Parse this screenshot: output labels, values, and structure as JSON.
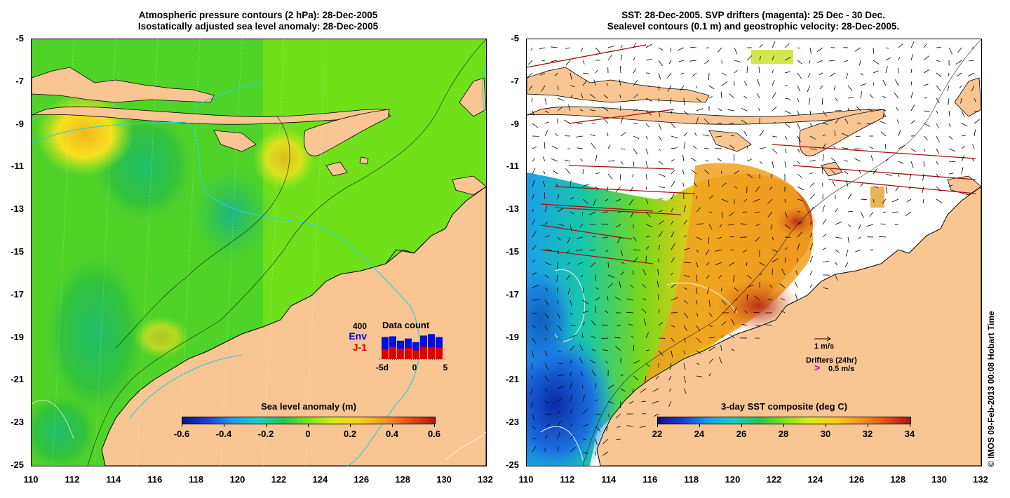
{
  "left_panel": {
    "title_line1": "Atmospheric pressure contours (2 hPa): 28-Dec-2005",
    "title_line2": "Isostatically adjusted sea level anomaly: 28-Dec-2005",
    "colorbar_title": "Sea level anomaly (m)",
    "colorbar_labels": [
      "-0.6",
      "-0.4",
      "-0.2",
      "0",
      "0.2",
      "0.4",
      "0.6"
    ],
    "inset": {
      "count_label": "400",
      "title": "Data count",
      "env_label": "Env",
      "j1_label": "J-1",
      "axis_labels": [
        "-5d",
        "0",
        "5"
      ],
      "env_values": [
        300,
        310,
        250,
        280,
        230,
        320,
        340,
        300
      ],
      "j1_values": [
        130,
        160,
        140,
        150,
        120,
        170,
        160,
        150
      ]
    }
  },
  "right_panel": {
    "title_line1": "SST: 28-Dec-2005. SVP drifters (magenta): 25 Dec - 30 Dec.",
    "title_line2": "Sealevel contours (0.1 m) and geostrophic velocity: 28-Dec-2005.",
    "colorbar_title": "3-day SST composite (deg C)",
    "colorbar_labels": [
      "22",
      "24",
      "26",
      "28",
      "30",
      "32",
      "34"
    ],
    "velocity_scale_label": "1 m/s",
    "drifters_label": "Drifters (24hr)",
    "drifter_speed_label": "0.5 m/s",
    "drifter_marker": ">"
  },
  "axes": {
    "x_ticks": [
      "110",
      "112",
      "114",
      "116",
      "118",
      "120",
      "122",
      "124",
      "126",
      "128",
      "130",
      "132"
    ],
    "y_ticks": [
      "-5",
      "-7",
      "-9",
      "-11",
      "-13",
      "-15",
      "-17",
      "-19",
      "-21",
      "-23",
      "-25"
    ]
  },
  "credit": "© IMOS 09-Feb-2013 00:08 Hobart Time",
  "colors": {
    "land": "#f9c593",
    "sea_green": "#7be619",
    "coast": "#000000",
    "contour_cyan": "#2ad4d4"
  }
}
